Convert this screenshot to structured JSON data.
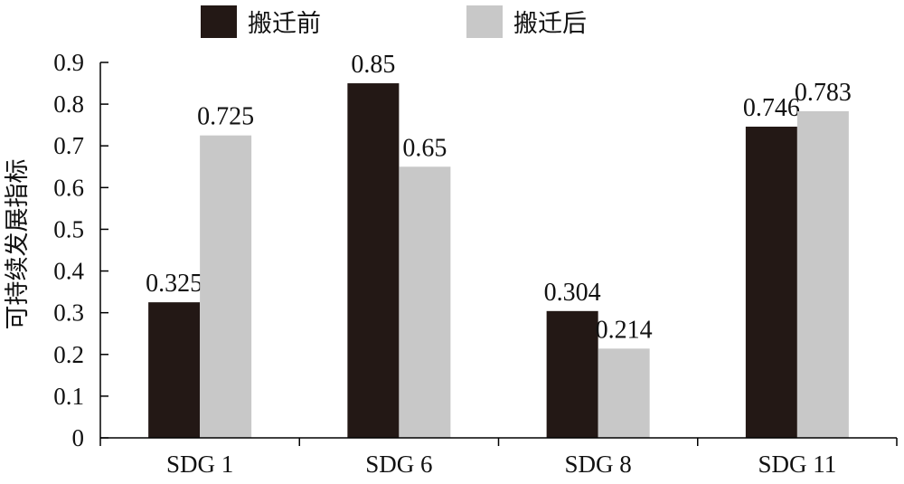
{
  "chart_data": {
    "type": "bar",
    "title": "",
    "xlabel": "",
    "ylabel": "可持续发展指标",
    "categories": [
      "SDG 1",
      "SDG 6",
      "SDG 8",
      "SDG 11"
    ],
    "series": [
      {
        "name": "搬迁前",
        "color": "#231815",
        "values": [
          0.325,
          0.85,
          0.304,
          0.746
        ],
        "labels": [
          "0.325",
          "0.85",
          "0.304",
          "0.746"
        ]
      },
      {
        "name": "搬迁后",
        "color": "#c8c8c8",
        "values": [
          0.725,
          0.65,
          0.214,
          0.783
        ],
        "labels": [
          "0.725",
          "0.65",
          "0.214",
          "0.783"
        ]
      }
    ],
    "ylim": [
      0,
      0.9
    ],
    "yticks": [
      "0",
      "0.1",
      "0.2",
      "0.3",
      "0.4",
      "0.5",
      "0.6",
      "0.7",
      "0.8",
      "0.9"
    ],
    "grid": false,
    "legend_position": "top"
  }
}
